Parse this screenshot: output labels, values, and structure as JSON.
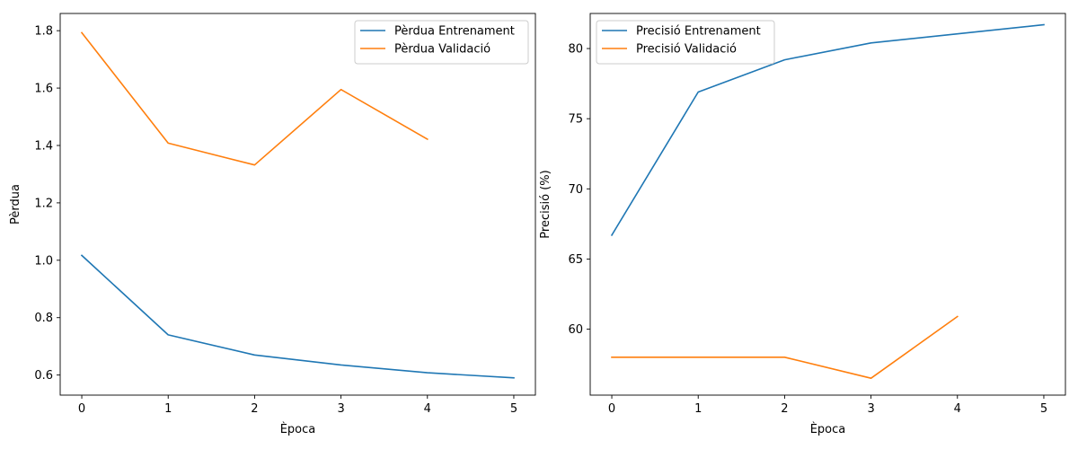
{
  "chart_data": [
    {
      "type": "line",
      "title": "",
      "xlabel": "Època",
      "ylabel": "Pèrdua",
      "xlim": [
        -0.25,
        5.25
      ],
      "ylim": [
        0.53,
        1.86
      ],
      "xticks": [
        0,
        1,
        2,
        3,
        4,
        5
      ],
      "yticks": [
        0.6,
        0.8,
        1.0,
        1.2,
        1.4,
        1.6,
        1.8
      ],
      "ytick_labels": [
        "0.6",
        "0.8",
        "1.0",
        "1.2",
        "1.4",
        "1.6",
        "1.8"
      ],
      "grid": false,
      "legend_position": "top-right",
      "series": [
        {
          "name": "Pèrdua Entrenament",
          "color": "#1f77b4",
          "x": [
            0,
            1,
            2,
            3,
            4,
            5
          ],
          "y": [
            1.017,
            0.74,
            0.67,
            0.635,
            0.608,
            0.59
          ]
        },
        {
          "name": "Pèrdua Validació",
          "color": "#ff7f0e",
          "x": [
            0,
            1,
            2,
            3,
            4
          ],
          "y": [
            1.793,
            1.408,
            1.332,
            1.595,
            1.422
          ]
        }
      ]
    },
    {
      "type": "line",
      "title": "",
      "xlabel": "Època",
      "ylabel": "Precisió (%)",
      "xlim": [
        -0.25,
        5.25
      ],
      "ylim": [
        55.3,
        82.5
      ],
      "xticks": [
        0,
        1,
        2,
        3,
        4,
        5
      ],
      "yticks": [
        60,
        65,
        70,
        75,
        80
      ],
      "ytick_labels": [
        "60",
        "65",
        "70",
        "75",
        "80"
      ],
      "grid": false,
      "legend_position": "top-left",
      "series": [
        {
          "name": "Precisió Entrenament",
          "color": "#1f77b4",
          "x": [
            0,
            1,
            2,
            3,
            4,
            5
          ],
          "y": [
            66.7,
            76.9,
            79.2,
            80.4,
            81.05,
            81.7
          ]
        },
        {
          "name": "Precisió Validació",
          "color": "#ff7f0e",
          "x": [
            0,
            1,
            2,
            3,
            4
          ],
          "y": [
            58.0,
            58.0,
            58.0,
            56.5,
            60.9
          ]
        }
      ]
    }
  ]
}
